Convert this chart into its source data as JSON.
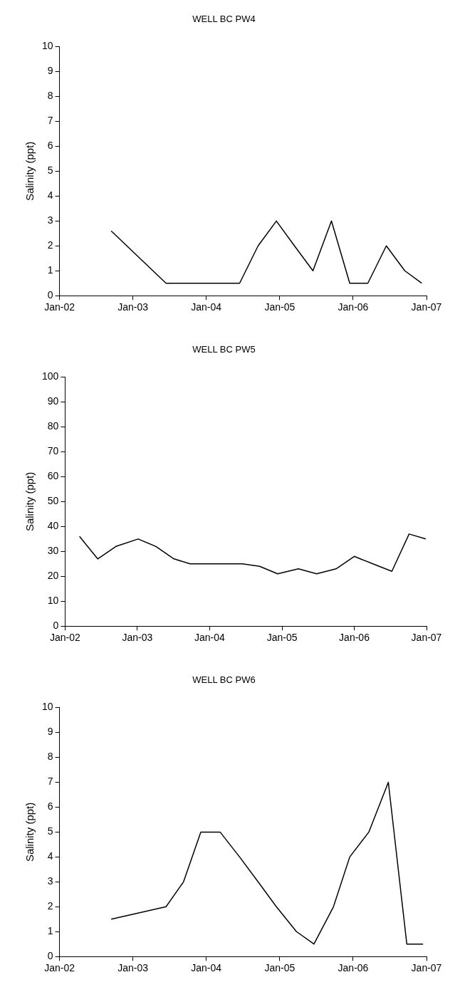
{
  "chart_data": [
    {
      "type": "line",
      "title": "WELL BC PW4",
      "ylabel": "Salinity (ppt)",
      "x": [
        "2002-09-15",
        "2003-06-15",
        "2003-09-15",
        "2003-12-15",
        "2004-03-15",
        "2004-06-15",
        "2004-09-15",
        "2004-12-15",
        "2005-03-15",
        "2005-06-15",
        "2005-09-15",
        "2005-12-15",
        "2006-03-15",
        "2006-06-15",
        "2006-09-15",
        "2006-12-08"
      ],
      "series": [
        {
          "color": "#000000",
          "values": [
            2.6,
            0.5,
            0.5,
            0.5,
            0.5,
            0.5,
            2,
            3,
            2,
            1,
            3,
            0.5,
            0.5,
            2,
            1,
            0.5
          ]
        }
      ],
      "xlim": [
        "2002-01-01",
        "2007-01-01"
      ],
      "xticks": [
        {
          "value": "2002-01-01",
          "label": "Jan-02"
        },
        {
          "value": "2003-01-01",
          "label": "Jan-03"
        },
        {
          "value": "2004-01-01",
          "label": "Jan-04"
        },
        {
          "value": "2005-01-01",
          "label": "Jan-05"
        },
        {
          "value": "2006-01-01",
          "label": "Jan-06"
        },
        {
          "value": "2007-01-01",
          "label": "Jan-07"
        }
      ],
      "ylim": [
        0,
        10
      ],
      "yticks": [
        0,
        1,
        2,
        3,
        4,
        5,
        6,
        7,
        8,
        9,
        10
      ],
      "grid": false,
      "legend": false,
      "marker": "none",
      "line_style": "solid"
    },
    {
      "type": "line",
      "title": "WELL BC PW5",
      "ylabel": "Salinity (ppt)",
      "x": [
        "2002-03-15",
        "2002-06-15",
        "2002-09-15",
        "2003-01-05",
        "2003-04-05",
        "2003-07-05",
        "2003-09-25",
        "2003-12-20",
        "2004-03-20",
        "2004-06-15",
        "2004-09-10",
        "2004-12-10",
        "2005-03-25",
        "2005-06-25",
        "2005-10-01",
        "2006-01-01",
        "2006-04-05",
        "2006-07-10",
        "2006-10-05",
        "2006-12-28"
      ],
      "series": [
        {
          "color": "#000000",
          "values": [
            36,
            27,
            32,
            35,
            32,
            27,
            25,
            25,
            25,
            25,
            24,
            21,
            23,
            21,
            23,
            28,
            25,
            22,
            37,
            35
          ]
        }
      ],
      "xlim": [
        "2002-01-01",
        "2007-01-01"
      ],
      "xticks": [
        {
          "value": "2002-01-01",
          "label": "Jan-02"
        },
        {
          "value": "2003-01-01",
          "label": "Jan-03"
        },
        {
          "value": "2004-01-01",
          "label": "Jan-04"
        },
        {
          "value": "2005-01-01",
          "label": "Jan-05"
        },
        {
          "value": "2006-01-01",
          "label": "Jan-06"
        },
        {
          "value": "2007-01-01",
          "label": "Jan-07"
        }
      ],
      "ylim": [
        0,
        100
      ],
      "yticks": [
        0,
        10,
        20,
        30,
        40,
        50,
        60,
        70,
        80,
        90,
        100
      ],
      "grid": false,
      "legend": false,
      "marker": "none",
      "line_style": "solid"
    },
    {
      "type": "line",
      "title": "WELL BC PW6",
      "ylabel": "Salinity (ppt)",
      "x": [
        "2002-09-15",
        "2003-06-15",
        "2003-09-10",
        "2003-12-05",
        "2004-03-10",
        "2004-06-15",
        "2004-09-15",
        "2004-12-15",
        "2005-03-25",
        "2005-06-20",
        "2005-09-25",
        "2005-12-15",
        "2006-03-20",
        "2006-06-25",
        "2006-09-25",
        "2006-12-15"
      ],
      "series": [
        {
          "color": "#000000",
          "values": [
            1.5,
            2,
            3,
            5,
            5,
            4,
            3,
            2,
            1,
            0.5,
            2,
            4,
            5,
            7,
            0.5,
            0.5
          ]
        }
      ],
      "xlim": [
        "2002-01-01",
        "2007-01-01"
      ],
      "xticks": [
        {
          "value": "2002-01-01",
          "label": "Jan-02"
        },
        {
          "value": "2003-01-01",
          "label": "Jan-03"
        },
        {
          "value": "2004-01-01",
          "label": "Jan-04"
        },
        {
          "value": "2005-01-01",
          "label": "Jan-05"
        },
        {
          "value": "2006-01-01",
          "label": "Jan-06"
        },
        {
          "value": "2007-01-01",
          "label": "Jan-07"
        }
      ],
      "ylim": [
        0,
        10
      ],
      "yticks": [
        0,
        1,
        2,
        3,
        4,
        5,
        6,
        7,
        8,
        9,
        10
      ],
      "grid": false,
      "legend": false,
      "marker": "none",
      "line_style": "solid"
    }
  ]
}
